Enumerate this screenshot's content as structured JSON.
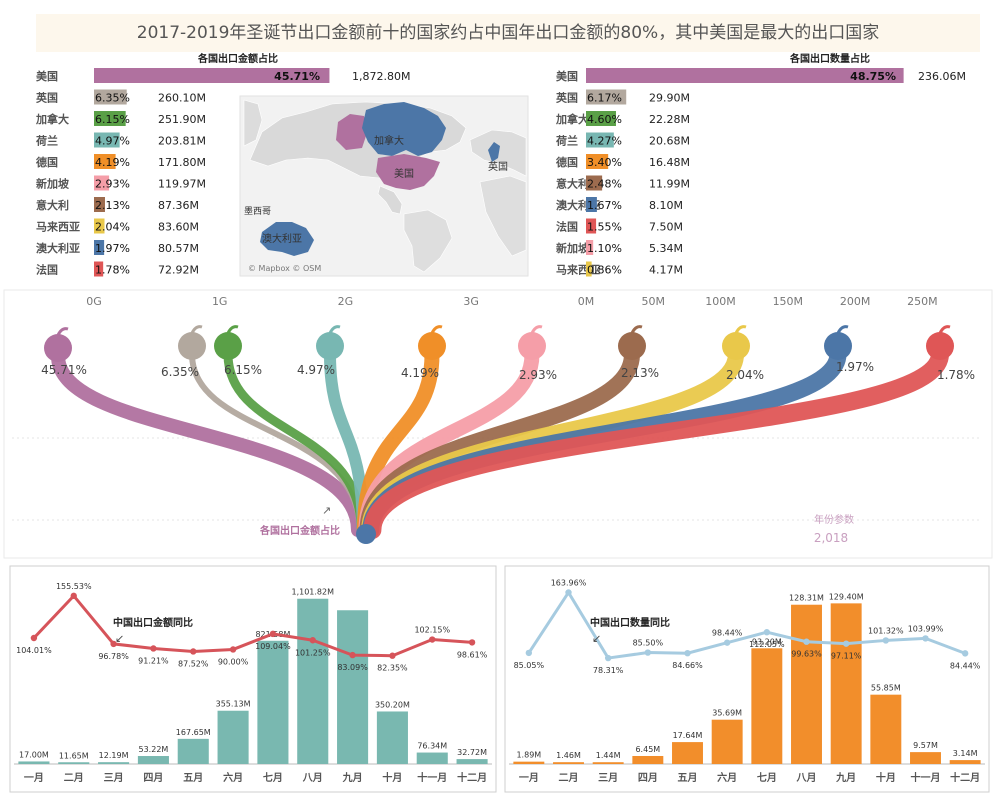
{
  "page": {
    "title": "2017-2019年圣诞节出口金额前十的国家约占中国年出口金额的80%，其中美国是最大的出口国家"
  },
  "colors": {
    "usa": "#b0719f",
    "uk": "#b2a89e",
    "canada": "#5aa047",
    "netherlands": "#78b7b2",
    "germany": "#f08f28",
    "singapore": "#f59ea8",
    "italy": "#9c6b4e",
    "malaysia": "#e9c84a",
    "australia": "#4c76a7",
    "france": "#df5656",
    "teal": "#79b8b0",
    "orange": "#f28e2b",
    "line_red": "#d6545a",
    "line_blue": "#a6cbe0"
  },
  "map": {
    "labels": [
      "加拿大",
      "美国",
      "英国",
      "墨西哥",
      "澳大利亚"
    ],
    "attribution": "© Mapbox © OSM"
  },
  "chart_data": [
    {
      "type": "bar",
      "id": "export-amount",
      "title": "各国出口金额占比",
      "categories": [
        "美国",
        "英国",
        "加拿大",
        "荷兰",
        "德国",
        "新加坡",
        "意大利",
        "马来西亚",
        "澳大利亚",
        "法国"
      ],
      "values": [
        1872.8,
        260.1,
        251.9,
        203.81,
        171.8,
        119.97,
        87.36,
        83.6,
        80.57,
        72.92
      ],
      "value_labels": [
        "1,872.80M",
        "260.10M",
        "251.90M",
        "203.81M",
        "171.80M",
        "119.97M",
        "87.36M",
        "83.60M",
        "80.57M",
        "72.92M"
      ],
      "pct_labels": [
        "45.71%",
        "6.35%",
        "6.15%",
        "4.97%",
        "4.19%",
        "2.93%",
        "2.13%",
        "2.04%",
        "1.97%",
        "1.78%"
      ],
      "color_keys": [
        "usa",
        "uk",
        "canada",
        "netherlands",
        "germany",
        "singapore",
        "italy",
        "malaysia",
        "australia",
        "france"
      ],
      "unit": "M",
      "xlim": [
        0,
        3500
      ],
      "ticks": [
        0,
        1000,
        2000,
        3000
      ],
      "tick_labels": [
        "0G",
        "1G",
        "2G",
        "3G"
      ]
    },
    {
      "type": "bar",
      "id": "export-quantity",
      "title": "各国出口数量占比",
      "categories": [
        "美国",
        "英国",
        "加拿大",
        "荷兰",
        "德国",
        "意大利",
        "澳大利亚",
        "法国",
        "新加坡",
        "马来西亚"
      ],
      "values": [
        236.06,
        29.9,
        22.28,
        20.68,
        16.48,
        11.99,
        8.1,
        7.5,
        5.34,
        4.17
      ],
      "value_labels": [
        "236.06M",
        "29.90M",
        "22.28M",
        "20.68M",
        "16.48M",
        "11.99M",
        "8.10M",
        "7.50M",
        "5.34M",
        "4.17M"
      ],
      "pct_labels": [
        "48.75%",
        "6.17%",
        "4.60%",
        "4.27%",
        "3.40%",
        "2.48%",
        "1.67%",
        "1.55%",
        "1.10%",
        "0.86%"
      ],
      "color_keys": [
        "usa",
        "uk",
        "canada",
        "netherlands",
        "germany",
        "italy",
        "australia",
        "france",
        "singapore",
        "malaysia"
      ],
      "unit": "M",
      "xlim": [
        0,
        275
      ],
      "ticks": [
        0,
        50,
        100,
        150,
        200,
        250
      ],
      "tick_labels": [
        "0M",
        "50M",
        "100M",
        "150M",
        "200M",
        "250M"
      ]
    },
    {
      "type": "flow",
      "id": "export-share-flow",
      "title": "各国出口金额占比",
      "categories": [
        "美国",
        "英国",
        "加拿大",
        "荷兰",
        "德国",
        "新加坡",
        "意大利",
        "马来西亚",
        "澳大利亚",
        "法国"
      ],
      "values": [
        45.71,
        6.35,
        6.15,
        4.97,
        4.19,
        2.93,
        2.13,
        2.04,
        1.97,
        1.78
      ],
      "labels": [
        "45.71%",
        "6.35%",
        "6.15%",
        "4.97%",
        "4.19%",
        "2.93%",
        "2.13%",
        "2.04%",
        "1.97%",
        "1.78%"
      ],
      "color_keys": [
        "usa",
        "uk",
        "canada",
        "netherlands",
        "germany",
        "singapore",
        "italy",
        "malaysia",
        "australia",
        "france"
      ],
      "param_label": "年份参数",
      "param_value": "2,018"
    },
    {
      "type": "bar+line",
      "id": "monthly-amount",
      "title": "中国出口金额同比",
      "categories": [
        "一月",
        "二月",
        "三月",
        "四月",
        "五月",
        "六月",
        "七月",
        "八月",
        "九月",
        "十月",
        "十一月",
        "十二月"
      ],
      "bars": [
        17.0,
        11.65,
        12.19,
        53.22,
        167.65,
        355.13,
        821.58,
        1101.82,
        1025.0,
        350.2,
        76.34,
        32.72
      ],
      "bar_labels": [
        "17.00M",
        "11.65M",
        "12.19M",
        "53.22M",
        "167.65M",
        "355.13M",
        "821.58M",
        "1,101.82M",
        "",
        "350.20M",
        "76.34M",
        "32.72M"
      ],
      "line": [
        104.01,
        155.53,
        96.78,
        91.21,
        87.52,
        90.0,
        109.04,
        101.25,
        83.09,
        82.35,
        102.15,
        98.61
      ],
      "line_labels": [
        "104.01%",
        "155.53%",
        "96.78%",
        "91.21%",
        "87.52%",
        "90.00%",
        "109.04%",
        "101.25%",
        "83.09%",
        "82.35%",
        "102.15%",
        "98.61%"
      ],
      "bar_color_key": "teal",
      "line_color_key": "line_red",
      "bar_ylim": [
        0,
        1200
      ],
      "line_ylim": [
        -50,
        170
      ]
    },
    {
      "type": "bar+line",
      "id": "monthly-quantity",
      "title": "中国出口数量同比",
      "categories": [
        "一月",
        "二月",
        "三月",
        "四月",
        "五月",
        "六月",
        "七月",
        "八月",
        "九月",
        "十月",
        "十一月",
        "十二月"
      ],
      "bars": [
        1.89,
        1.46,
        1.44,
        6.45,
        17.64,
        35.69,
        93.2,
        128.31,
        129.4,
        55.85,
        9.57,
        3.14
      ],
      "bar_labels": [
        "1.89M",
        "1.46M",
        "1.44M",
        "6.45M",
        "17.64M",
        "35.69M",
        "93.20M",
        "128.31M",
        "129.40M",
        "55.85M",
        "9.57M",
        "3.14M"
      ],
      "line": [
        85.05,
        163.96,
        78.31,
        85.5,
        84.66,
        98.44,
        112.05,
        99.63,
        97.11,
        101.32,
        103.99,
        84.44
      ],
      "line_labels": [
        "85.05%",
        "163.96%",
        "78.31%",
        "85.50%",
        "84.66%",
        "98.44%",
        "112.05%",
        "99.63%",
        "97.11%",
        "101.32%",
        "103.99%",
        "84.44%"
      ],
      "bar_color_key": "orange",
      "line_color_key": "line_blue",
      "bar_ylim": [
        0,
        145
      ],
      "line_ylim": [
        -60,
        175
      ]
    }
  ]
}
